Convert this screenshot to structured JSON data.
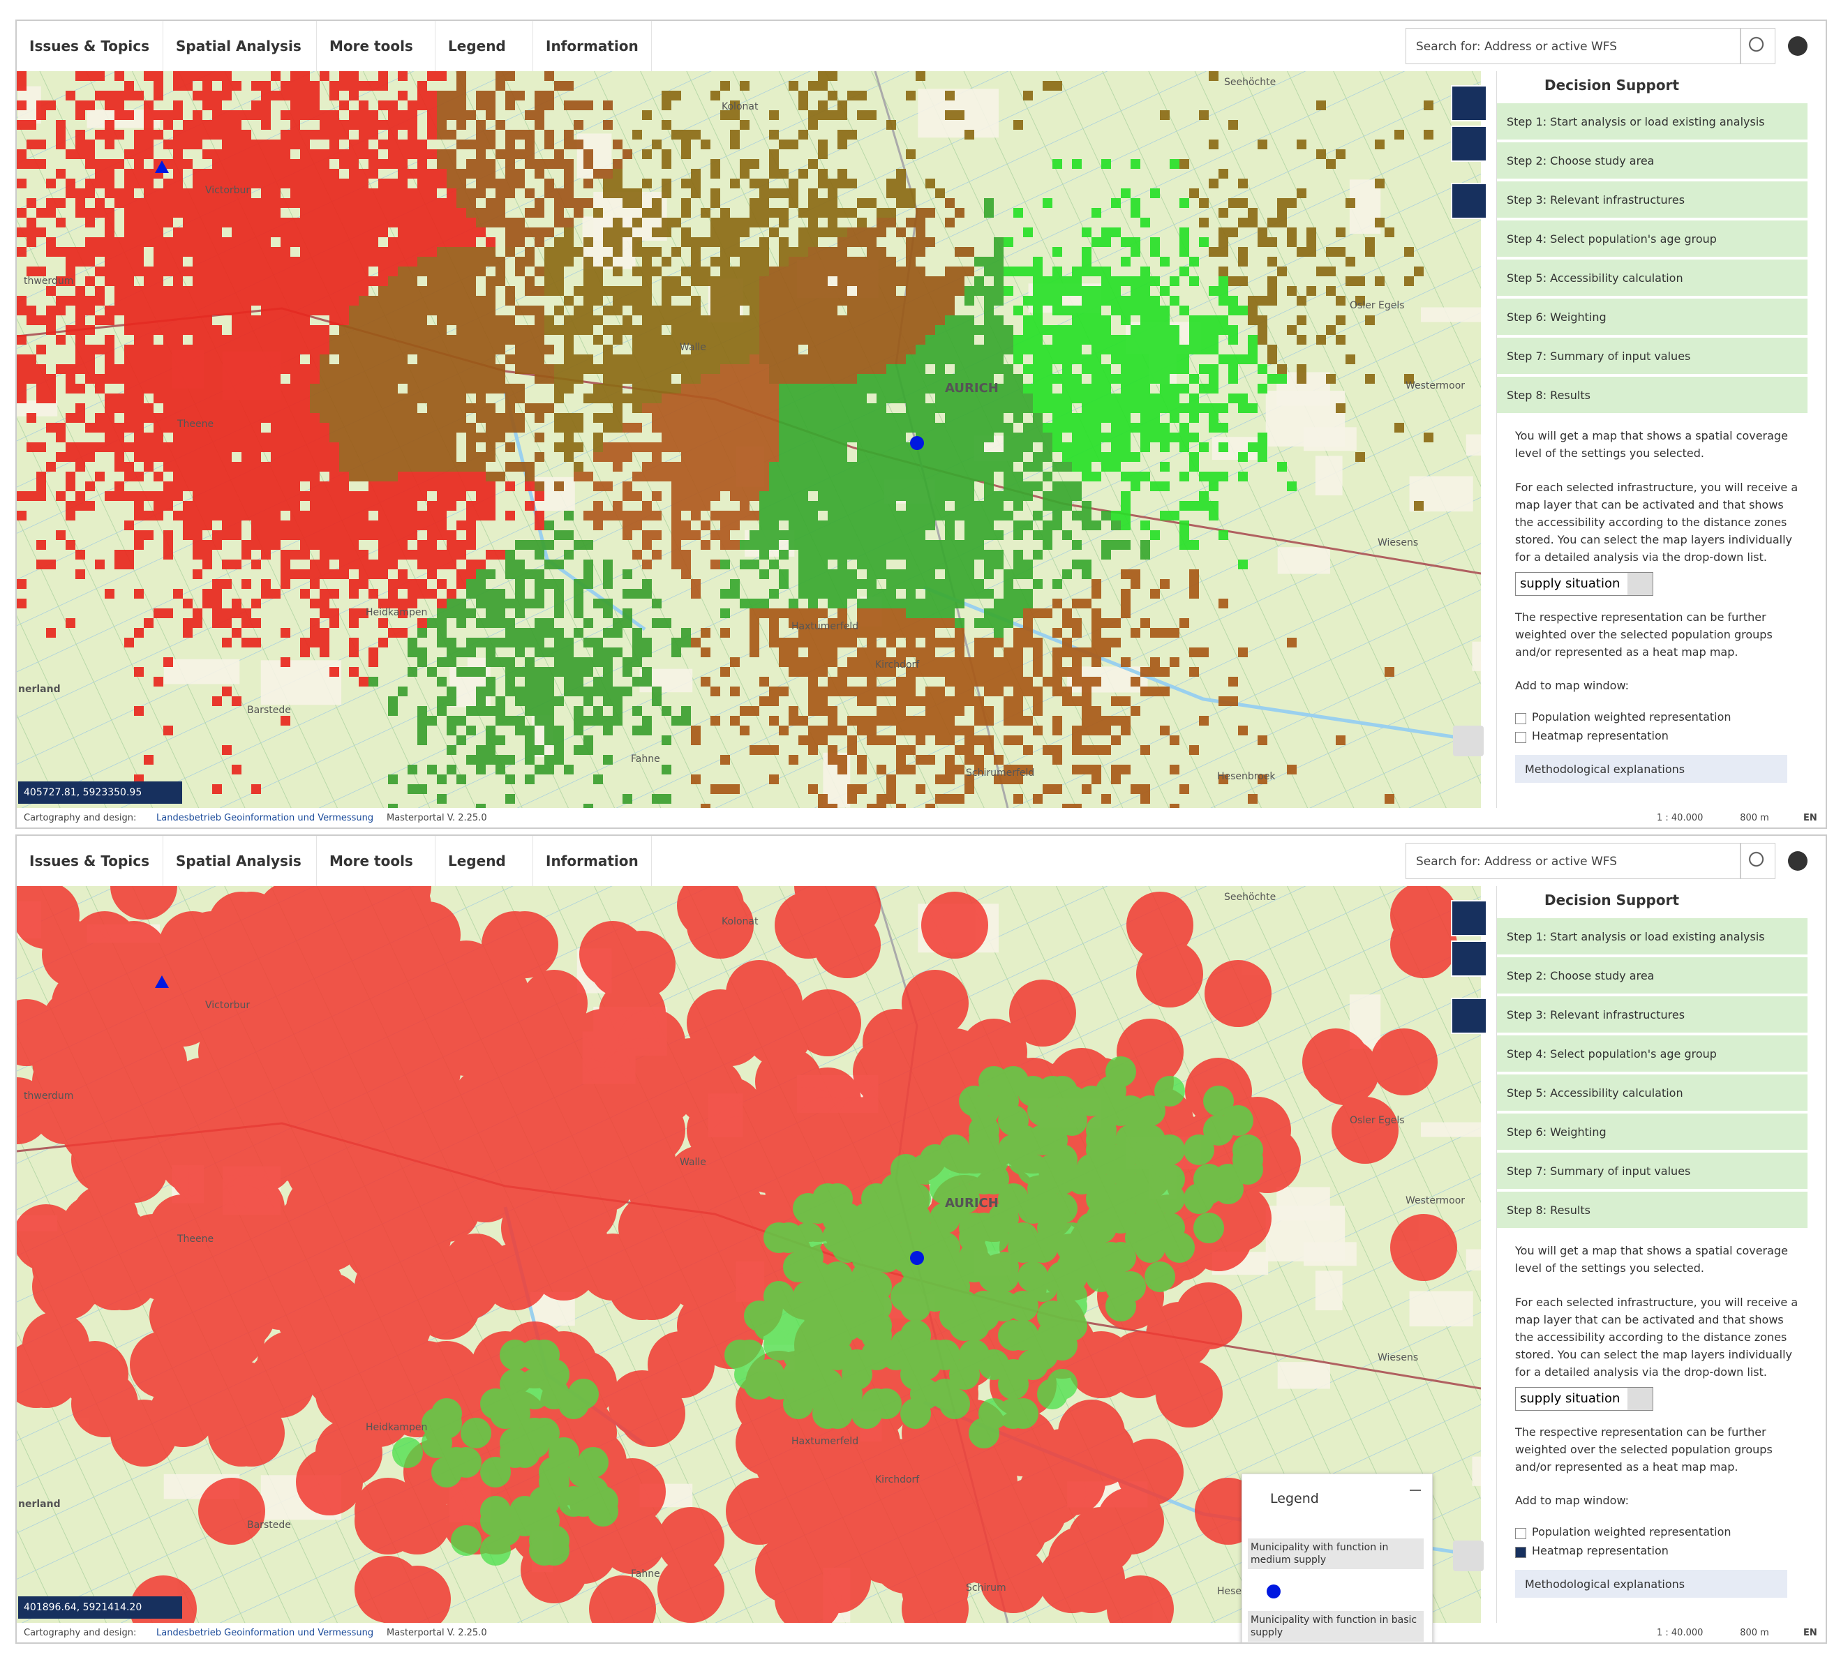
{
  "panels": [
    {
      "toolbar": [
        "Issues & Topics",
        "Spatial Analysis",
        "More tools",
        "Legend",
        "Information"
      ],
      "search": "Search for: Address or active WFS",
      "sidebar_title": "Decision Support",
      "steps": [
        "Step 1: Start analysis or load existing analysis",
        "Step 2: Choose study area",
        "Step 3: Relevant infrastructures",
        "Step 4: Select population's age group",
        "Step 5: Accessibility calculation",
        "Step 6: Weighting",
        "Step 7: Summary of input values",
        "Step 8: Results"
      ],
      "results_text": [
        "You will get a map that shows a spatial coverage level of the settings you selected.",
        "For each selected infrastructure, you will receive a map layer that can be activated and that shows the accessibility according to the distance zones stored. You can select the map layers individually for a detailed analysis via the drop-down list."
      ],
      "dropdown": "supply situation",
      "weight_text": "The respective representation can be further weighted over the selected population groups and/or represented as a heat map map.",
      "add_label": "Add to map window:",
      "checkboxes": [
        {
          "label": "Population weighted representation",
          "checked": false
        },
        {
          "label": "Heatmap representation",
          "checked": false
        }
      ],
      "method": "Methodological explanations",
      "coordinates": "405727.81, 5923350.95",
      "map_labels": [
        "Seehöchte",
        "Victorbur",
        "Walle",
        "AURICH",
        "Wiesens",
        "Barstede",
        "Haxtumerfeld",
        "Kirchdorf",
        "Fahne",
        "Schirumerfeld",
        "Hesenbroek",
        "Theene",
        "Osler Egels",
        "Westermoor",
        "nerland",
        "thwerdum",
        "Heidkampen",
        "Kolonat"
      ],
      "footer": {
        "credit_label": "Cartography and design:",
        "credit": "Landesbetrieb Geoinformation und Vermessung",
        "version": "Masterportal V. 2.25.0",
        "scale": "1 : 40.000",
        "scalebar": "800 m",
        "lang": "EN"
      }
    },
    {
      "toolbar": [
        "Issues & Topics",
        "Spatial Analysis",
        "More tools",
        "Legend",
        "Information"
      ],
      "search": "Search for: Address or active WFS",
      "sidebar_title": "Decision Support",
      "steps": [
        "Step 1: Start analysis or load existing analysis",
        "Step 2: Choose study area",
        "Step 3: Relevant infrastructures",
        "Step 4: Select population's age group",
        "Step 5: Accessibility calculation",
        "Step 6: Weighting",
        "Step 7: Summary of input values",
        "Step 8: Results"
      ],
      "results_text": [
        "You will get a map that shows a spatial coverage level of the settings you selected.",
        "For each selected infrastructure, you will receive a map layer that can be activated and that shows the accessibility according to the distance zones stored. You can select the map layers individually for a detailed analysis via the drop-down list."
      ],
      "dropdown": "supply situation",
      "weight_text": "The respective representation can be further weighted over the selected population groups and/or represented as a heat map map.",
      "add_label": "Add to map window:",
      "checkboxes": [
        {
          "label": "Population weighted representation",
          "checked": false
        },
        {
          "label": "Heatmap representation",
          "checked": true
        }
      ],
      "method": "Methodological explanations",
      "coordinates": "401896.64, 5921414.20",
      "map_labels": [
        "Seehöchte",
        "Victorbur",
        "Walle",
        "AURICH",
        "Wiesens",
        "Barstede",
        "Haxtumerfeld",
        "Kirchdorf",
        "Fahne",
        "Schirum",
        "Hesenbroek",
        "Theene",
        "Osler Egels",
        "Westermoor",
        "nerland",
        "thwerdum",
        "Heidkampen",
        "Kolonat"
      ],
      "legend": {
        "title": "Legend",
        "items": [
          "Municipality with function in medium supply",
          "Municipality with function in basic supply"
        ]
      },
      "footer": {
        "credit_label": "Cartography and design:",
        "credit": "Landesbetrieb Geoinformation und Vermessung",
        "version": "Masterportal V. 2.25.0",
        "scale": "1 : 40.000",
        "scalebar": "800 m",
        "lang": "EN"
      }
    }
  ]
}
